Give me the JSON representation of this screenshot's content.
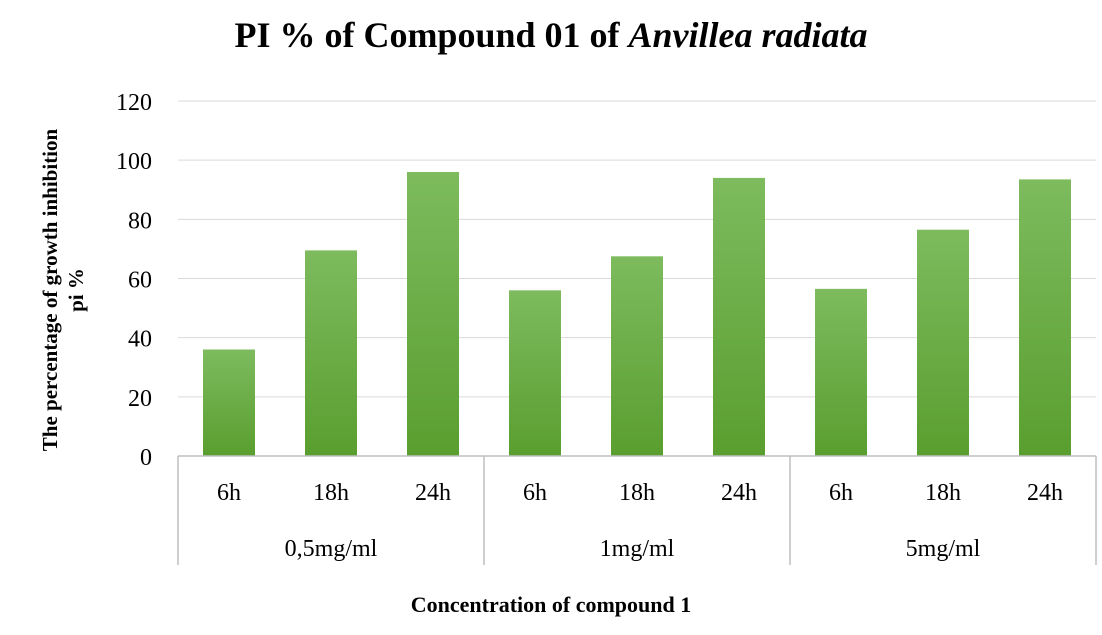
{
  "chart_data": {
    "type": "bar",
    "title": {
      "main": "PI % of Compound 01 of ",
      "italic": "Anvillea radiata"
    },
    "ylabel": {
      "line1": "The percentage of growth  inhibition",
      "line2": "pi %"
    },
    "xlabel": "Concentration of compound 1",
    "ylim": [
      0,
      120
    ],
    "yticks": [
      "0",
      "20",
      "40",
      "60",
      "80",
      "100",
      "120"
    ],
    "grid": true,
    "groups": [
      {
        "label": "0,5mg/ml",
        "categories": [
          "6h",
          "18h",
          "24h"
        ],
        "values": [
          36,
          69.5,
          96
        ]
      },
      {
        "label": "1mg/ml",
        "categories": [
          "6h",
          "18h",
          "24h"
        ],
        "values": [
          56,
          67.5,
          94
        ]
      },
      {
        "label": "5mg/ml",
        "categories": [
          "6h",
          "18h",
          "24h"
        ],
        "values": [
          56.5,
          76.5,
          93.5
        ]
      }
    ],
    "bar_color": "#6aae3f",
    "bar_color_light": "#7dbb5e",
    "bar_color_dark": "#5a9e2f",
    "grid_color": "#d9d9d9",
    "axis_color": "#bfbfbf"
  }
}
